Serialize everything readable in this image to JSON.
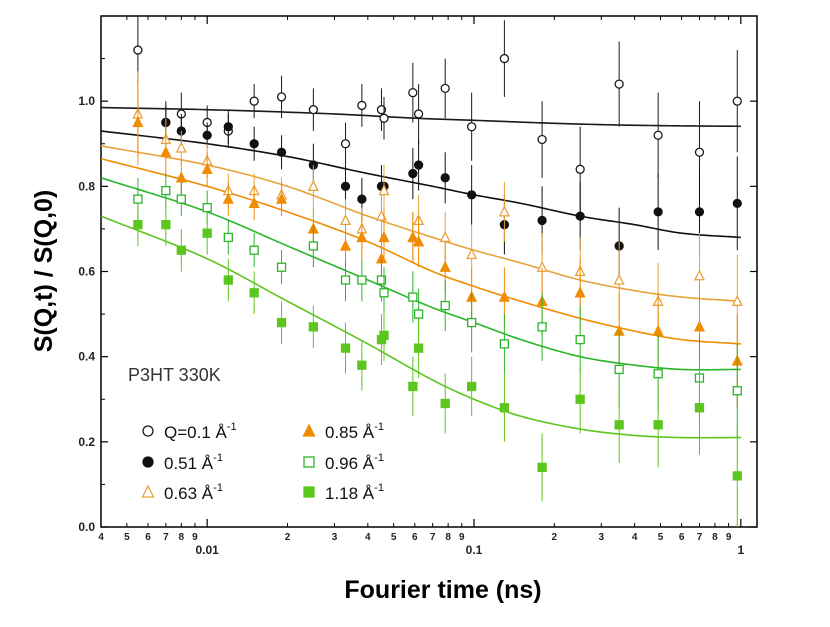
{
  "chart_data": {
    "type": "scatter",
    "title": "",
    "xlabel": "Fourier time (ns)",
    "ylabel": "S(Q,t) / S(Q,0)",
    "xscale": "log",
    "xlim": [
      0.004,
      1.15
    ],
    "ylim": [
      0.0,
      1.2
    ],
    "yticks": [
      0.0,
      0.2,
      0.4,
      0.6,
      0.8,
      1.0
    ],
    "ytick_labels": [
      "0.0",
      "0.2",
      "0.4",
      "0.6",
      "0.8",
      "1.0"
    ],
    "xtick_major": [
      {
        "value": 0.01,
        "label": "0.01"
      },
      {
        "value": 0.1,
        "label": "0.1"
      },
      {
        "value": 1,
        "label": "1"
      }
    ],
    "xtick_minor": [
      {
        "value": 0.004,
        "label": "4"
      },
      {
        "value": 0.005,
        "label": "5"
      },
      {
        "value": 0.006,
        "label": "6"
      },
      {
        "value": 0.007,
        "label": "7"
      },
      {
        "value": 0.008,
        "label": "8"
      },
      {
        "value": 0.009,
        "label": "9"
      },
      {
        "value": 0.02,
        "label": "2"
      },
      {
        "value": 0.03,
        "label": "3"
      },
      {
        "value": 0.04,
        "label": "4"
      },
      {
        "value": 0.05,
        "label": "5"
      },
      {
        "value": 0.06,
        "label": "6"
      },
      {
        "value": 0.07,
        "label": "7"
      },
      {
        "value": 0.08,
        "label": "8"
      },
      {
        "value": 0.09,
        "label": "9"
      },
      {
        "value": 0.2,
        "label": "2"
      },
      {
        "value": 0.3,
        "label": "3"
      },
      {
        "value": 0.4,
        "label": "4"
      },
      {
        "value": 0.5,
        "label": "5"
      },
      {
        "value": 0.6,
        "label": "6"
      },
      {
        "value": 0.7,
        "label": "7"
      },
      {
        "value": 0.8,
        "label": "8"
      },
      {
        "value": 0.9,
        "label": "9"
      }
    ],
    "annotation": "P3HT 330K",
    "legend_position": "bottom-left",
    "series": [
      {
        "id": "q010",
        "name": "Q=0.1 Å",
        "legend_main": "Q=0.1 Å",
        "legend_sup": "-1",
        "color": "#1a1a1a",
        "marker": "circle",
        "filled": false,
        "points": [
          {
            "x": 0.0055,
            "y": 1.12,
            "err": 0.08
          },
          {
            "x": 0.007,
            "y": 0.95,
            "err": 0.05
          },
          {
            "x": 0.008,
            "y": 0.97,
            "err": 0.05
          },
          {
            "x": 0.01,
            "y": 0.95,
            "err": 0.04
          },
          {
            "x": 0.012,
            "y": 0.93,
            "err": 0.04
          },
          {
            "x": 0.015,
            "y": 1.0,
            "err": 0.04
          },
          {
            "x": 0.019,
            "y": 1.01,
            "err": 0.05
          },
          {
            "x": 0.025,
            "y": 0.98,
            "err": 0.05
          },
          {
            "x": 0.033,
            "y": 0.9,
            "err": 0.05
          },
          {
            "x": 0.038,
            "y": 0.99,
            "err": 0.05
          },
          {
            "x": 0.045,
            "y": 0.98,
            "err": 0.05
          },
          {
            "x": 0.046,
            "y": 0.96,
            "err": 0.05
          },
          {
            "x": 0.059,
            "y": 1.02,
            "err": 0.07
          },
          {
            "x": 0.062,
            "y": 0.97,
            "err": 0.07
          },
          {
            "x": 0.078,
            "y": 1.03,
            "err": 0.07
          },
          {
            "x": 0.098,
            "y": 0.94,
            "err": 0.08
          },
          {
            "x": 0.13,
            "y": 1.1,
            "err": 0.09
          },
          {
            "x": 0.18,
            "y": 0.91,
            "err": 0.09
          },
          {
            "x": 0.25,
            "y": 0.84,
            "err": 0.1
          },
          {
            "x": 0.35,
            "y": 1.04,
            "err": 0.1
          },
          {
            "x": 0.49,
            "y": 0.92,
            "err": 0.1
          },
          {
            "x": 0.7,
            "y": 0.88,
            "err": 0.12
          },
          {
            "x": 0.97,
            "y": 1.0,
            "err": 0.12
          }
        ],
        "fit": {
          "x": [
            0.004,
            0.01,
            0.03,
            0.06,
            0.1,
            0.2,
            0.35,
            0.6,
            1.0
          ],
          "y": [
            0.985,
            0.98,
            0.97,
            0.96,
            0.955,
            0.948,
            0.944,
            0.942,
            0.941
          ]
        }
      },
      {
        "id": "q051",
        "name": "0.51 Å",
        "legend_main": "0.51 Å",
        "legend_sup": "-1",
        "color": "#111111",
        "marker": "circle",
        "filled": true,
        "points": [
          {
            "x": 0.007,
            "y": 0.95,
            "err": 0.04
          },
          {
            "x": 0.008,
            "y": 0.93,
            "err": 0.04
          },
          {
            "x": 0.01,
            "y": 0.92,
            "err": 0.03
          },
          {
            "x": 0.012,
            "y": 0.94,
            "err": 0.04
          },
          {
            "x": 0.015,
            "y": 0.9,
            "err": 0.04
          },
          {
            "x": 0.019,
            "y": 0.88,
            "err": 0.04
          },
          {
            "x": 0.025,
            "y": 0.85,
            "err": 0.05
          },
          {
            "x": 0.033,
            "y": 0.8,
            "err": 0.05
          },
          {
            "x": 0.038,
            "y": 0.77,
            "err": 0.05
          },
          {
            "x": 0.045,
            "y": 0.8,
            "err": 0.05
          },
          {
            "x": 0.046,
            "y": 0.8,
            "err": 0.05
          },
          {
            "x": 0.059,
            "y": 0.83,
            "err": 0.06
          },
          {
            "x": 0.062,
            "y": 0.85,
            "err": 0.06
          },
          {
            "x": 0.078,
            "y": 0.82,
            "err": 0.06
          },
          {
            "x": 0.098,
            "y": 0.78,
            "err": 0.07
          },
          {
            "x": 0.13,
            "y": 0.71,
            "err": 0.07
          },
          {
            "x": 0.18,
            "y": 0.72,
            "err": 0.08
          },
          {
            "x": 0.25,
            "y": 0.73,
            "err": 0.08
          },
          {
            "x": 0.35,
            "y": 0.66,
            "err": 0.09
          },
          {
            "x": 0.49,
            "y": 0.74,
            "err": 0.09
          },
          {
            "x": 0.7,
            "y": 0.74,
            "err": 0.1
          },
          {
            "x": 0.97,
            "y": 0.76,
            "err": 0.11
          }
        ],
        "fit": {
          "x": [
            0.004,
            0.01,
            0.02,
            0.04,
            0.07,
            0.1,
            0.15,
            0.25,
            0.4,
            0.6,
            1.0
          ],
          "y": [
            0.93,
            0.9,
            0.87,
            0.83,
            0.8,
            0.78,
            0.76,
            0.73,
            0.71,
            0.69,
            0.68
          ]
        }
      },
      {
        "id": "q063",
        "name": "0.63 Å",
        "legend_main": "0.63 Å",
        "legend_sup": "-1",
        "color": "#e8a23c",
        "marker": "triangle",
        "filled": false,
        "points": [
          {
            "x": 0.0055,
            "y": 0.97,
            "err": 0.1
          },
          {
            "x": 0.007,
            "y": 0.91,
            "err": 0.05
          },
          {
            "x": 0.008,
            "y": 0.89,
            "err": 0.04
          },
          {
            "x": 0.01,
            "y": 0.86,
            "err": 0.04
          },
          {
            "x": 0.012,
            "y": 0.79,
            "err": 0.04
          },
          {
            "x": 0.015,
            "y": 0.79,
            "err": 0.04
          },
          {
            "x": 0.019,
            "y": 0.78,
            "err": 0.04
          },
          {
            "x": 0.025,
            "y": 0.8,
            "err": 0.05
          },
          {
            "x": 0.033,
            "y": 0.72,
            "err": 0.05
          },
          {
            "x": 0.038,
            "y": 0.7,
            "err": 0.05
          },
          {
            "x": 0.045,
            "y": 0.73,
            "err": 0.05
          },
          {
            "x": 0.046,
            "y": 0.79,
            "err": 0.06
          },
          {
            "x": 0.059,
            "y": 0.68,
            "err": 0.06
          },
          {
            "x": 0.062,
            "y": 0.72,
            "err": 0.06
          },
          {
            "x": 0.078,
            "y": 0.68,
            "err": 0.06
          },
          {
            "x": 0.098,
            "y": 0.64,
            "err": 0.07
          },
          {
            "x": 0.13,
            "y": 0.74,
            "err": 0.07
          },
          {
            "x": 0.18,
            "y": 0.61,
            "err": 0.08
          },
          {
            "x": 0.25,
            "y": 0.6,
            "err": 0.08
          },
          {
            "x": 0.35,
            "y": 0.58,
            "err": 0.09
          },
          {
            "x": 0.49,
            "y": 0.53,
            "err": 0.09
          },
          {
            "x": 0.7,
            "y": 0.59,
            "err": 0.1
          },
          {
            "x": 0.97,
            "y": 0.53,
            "err": 0.11
          }
        ],
        "fit": {
          "x": [
            0.004,
            0.01,
            0.02,
            0.04,
            0.07,
            0.1,
            0.15,
            0.25,
            0.4,
            0.6,
            1.0
          ],
          "y": [
            0.895,
            0.85,
            0.8,
            0.73,
            0.68,
            0.65,
            0.62,
            0.58,
            0.555,
            0.54,
            0.53
          ]
        }
      },
      {
        "id": "q085",
        "name": "0.85 Å",
        "legend_main": "0.85 Å",
        "legend_sup": "-1",
        "color": "#f08c00",
        "marker": "triangle",
        "filled": true,
        "points": [
          {
            "x": 0.0055,
            "y": 0.95,
            "err": 0.1
          },
          {
            "x": 0.007,
            "y": 0.88,
            "err": 0.05
          },
          {
            "x": 0.008,
            "y": 0.82,
            "err": 0.04
          },
          {
            "x": 0.01,
            "y": 0.84,
            "err": 0.04
          },
          {
            "x": 0.012,
            "y": 0.77,
            "err": 0.04
          },
          {
            "x": 0.015,
            "y": 0.76,
            "err": 0.04
          },
          {
            "x": 0.019,
            "y": 0.77,
            "err": 0.04
          },
          {
            "x": 0.025,
            "y": 0.7,
            "err": 0.05
          },
          {
            "x": 0.033,
            "y": 0.66,
            "err": 0.05
          },
          {
            "x": 0.038,
            "y": 0.68,
            "err": 0.05
          },
          {
            "x": 0.045,
            "y": 0.63,
            "err": 0.05
          },
          {
            "x": 0.046,
            "y": 0.68,
            "err": 0.06
          },
          {
            "x": 0.059,
            "y": 0.68,
            "err": 0.06
          },
          {
            "x": 0.062,
            "y": 0.67,
            "err": 0.06
          },
          {
            "x": 0.078,
            "y": 0.61,
            "err": 0.06
          },
          {
            "x": 0.098,
            "y": 0.54,
            "err": 0.07
          },
          {
            "x": 0.13,
            "y": 0.54,
            "err": 0.07
          },
          {
            "x": 0.18,
            "y": 0.53,
            "err": 0.08
          },
          {
            "x": 0.25,
            "y": 0.55,
            "err": 0.08
          },
          {
            "x": 0.35,
            "y": 0.46,
            "err": 0.09
          },
          {
            "x": 0.49,
            "y": 0.46,
            "err": 0.09
          },
          {
            "x": 0.7,
            "y": 0.47,
            "err": 0.1
          },
          {
            "x": 0.97,
            "y": 0.39,
            "err": 0.11
          }
        ],
        "fit": {
          "x": [
            0.004,
            0.01,
            0.02,
            0.04,
            0.07,
            0.1,
            0.15,
            0.25,
            0.4,
            0.6,
            1.0
          ],
          "y": [
            0.865,
            0.8,
            0.74,
            0.67,
            0.6,
            0.565,
            0.53,
            0.49,
            0.46,
            0.44,
            0.43
          ]
        }
      },
      {
        "id": "q096",
        "name": "0.96 Å",
        "legend_main": "0.96 Å",
        "legend_sup": "-1",
        "color": "#2bb52b",
        "marker": "square",
        "filled": false,
        "points": [
          {
            "x": 0.0055,
            "y": 0.77,
            "err": 0.05
          },
          {
            "x": 0.007,
            "y": 0.79,
            "err": 0.04
          },
          {
            "x": 0.008,
            "y": 0.77,
            "err": 0.04
          },
          {
            "x": 0.01,
            "y": 0.75,
            "err": 0.04
          },
          {
            "x": 0.012,
            "y": 0.68,
            "err": 0.04
          },
          {
            "x": 0.015,
            "y": 0.65,
            "err": 0.04
          },
          {
            "x": 0.019,
            "y": 0.61,
            "err": 0.04
          },
          {
            "x": 0.025,
            "y": 0.66,
            "err": 0.05
          },
          {
            "x": 0.033,
            "y": 0.58,
            "err": 0.05
          },
          {
            "x": 0.038,
            "y": 0.58,
            "err": 0.05
          },
          {
            "x": 0.045,
            "y": 0.58,
            "err": 0.05
          },
          {
            "x": 0.046,
            "y": 0.55,
            "err": 0.06
          },
          {
            "x": 0.059,
            "y": 0.54,
            "err": 0.06
          },
          {
            "x": 0.062,
            "y": 0.5,
            "err": 0.06
          },
          {
            "x": 0.078,
            "y": 0.52,
            "err": 0.06
          },
          {
            "x": 0.098,
            "y": 0.48,
            "err": 0.07
          },
          {
            "x": 0.13,
            "y": 0.43,
            "err": 0.07
          },
          {
            "x": 0.18,
            "y": 0.47,
            "err": 0.08
          },
          {
            "x": 0.25,
            "y": 0.44,
            "err": 0.08
          },
          {
            "x": 0.35,
            "y": 0.37,
            "err": 0.09
          },
          {
            "x": 0.49,
            "y": 0.36,
            "err": 0.09
          },
          {
            "x": 0.7,
            "y": 0.35,
            "err": 0.1
          },
          {
            "x": 0.97,
            "y": 0.32,
            "err": 0.11
          }
        ],
        "fit": {
          "x": [
            0.004,
            0.01,
            0.02,
            0.04,
            0.07,
            0.1,
            0.15,
            0.25,
            0.4,
            0.6,
            1.0
          ],
          "y": [
            0.82,
            0.74,
            0.66,
            0.58,
            0.515,
            0.48,
            0.44,
            0.4,
            0.38,
            0.37,
            0.37
          ]
        }
      },
      {
        "id": "q118",
        "name": "1.18 Å",
        "legend_main": "1.18 Å",
        "legend_sup": "-1",
        "color": "#5cc51e",
        "marker": "square",
        "filled": true,
        "points": [
          {
            "x": 0.0055,
            "y": 0.71,
            "err": 0.05
          },
          {
            "x": 0.007,
            "y": 0.71,
            "err": 0.05
          },
          {
            "x": 0.008,
            "y": 0.65,
            "err": 0.05
          },
          {
            "x": 0.01,
            "y": 0.69,
            "err": 0.05
          },
          {
            "x": 0.012,
            "y": 0.58,
            "err": 0.05
          },
          {
            "x": 0.015,
            "y": 0.55,
            "err": 0.05
          },
          {
            "x": 0.019,
            "y": 0.48,
            "err": 0.05
          },
          {
            "x": 0.025,
            "y": 0.47,
            "err": 0.05
          },
          {
            "x": 0.033,
            "y": 0.42,
            "err": 0.06
          },
          {
            "x": 0.038,
            "y": 0.38,
            "err": 0.06
          },
          {
            "x": 0.045,
            "y": 0.44,
            "err": 0.06
          },
          {
            "x": 0.046,
            "y": 0.45,
            "err": 0.06
          },
          {
            "x": 0.059,
            "y": 0.33,
            "err": 0.07
          },
          {
            "x": 0.062,
            "y": 0.42,
            "err": 0.07
          },
          {
            "x": 0.078,
            "y": 0.29,
            "err": 0.07
          },
          {
            "x": 0.098,
            "y": 0.33,
            "err": 0.07
          },
          {
            "x": 0.13,
            "y": 0.28,
            "err": 0.08
          },
          {
            "x": 0.18,
            "y": 0.14,
            "err": 0.08
          },
          {
            "x": 0.25,
            "y": 0.3,
            "err": 0.08
          },
          {
            "x": 0.35,
            "y": 0.24,
            "err": 0.09
          },
          {
            "x": 0.49,
            "y": 0.24,
            "err": 0.1
          },
          {
            "x": 0.7,
            "y": 0.28,
            "err": 0.11
          },
          {
            "x": 0.97,
            "y": 0.12,
            "err": 0.12
          }
        ],
        "fit": {
          "x": [
            0.004,
            0.01,
            0.02,
            0.04,
            0.07,
            0.1,
            0.15,
            0.25,
            0.4,
            0.6,
            1.0
          ],
          "y": [
            0.73,
            0.63,
            0.53,
            0.43,
            0.345,
            0.3,
            0.26,
            0.23,
            0.215,
            0.21,
            0.21
          ]
        }
      }
    ]
  }
}
